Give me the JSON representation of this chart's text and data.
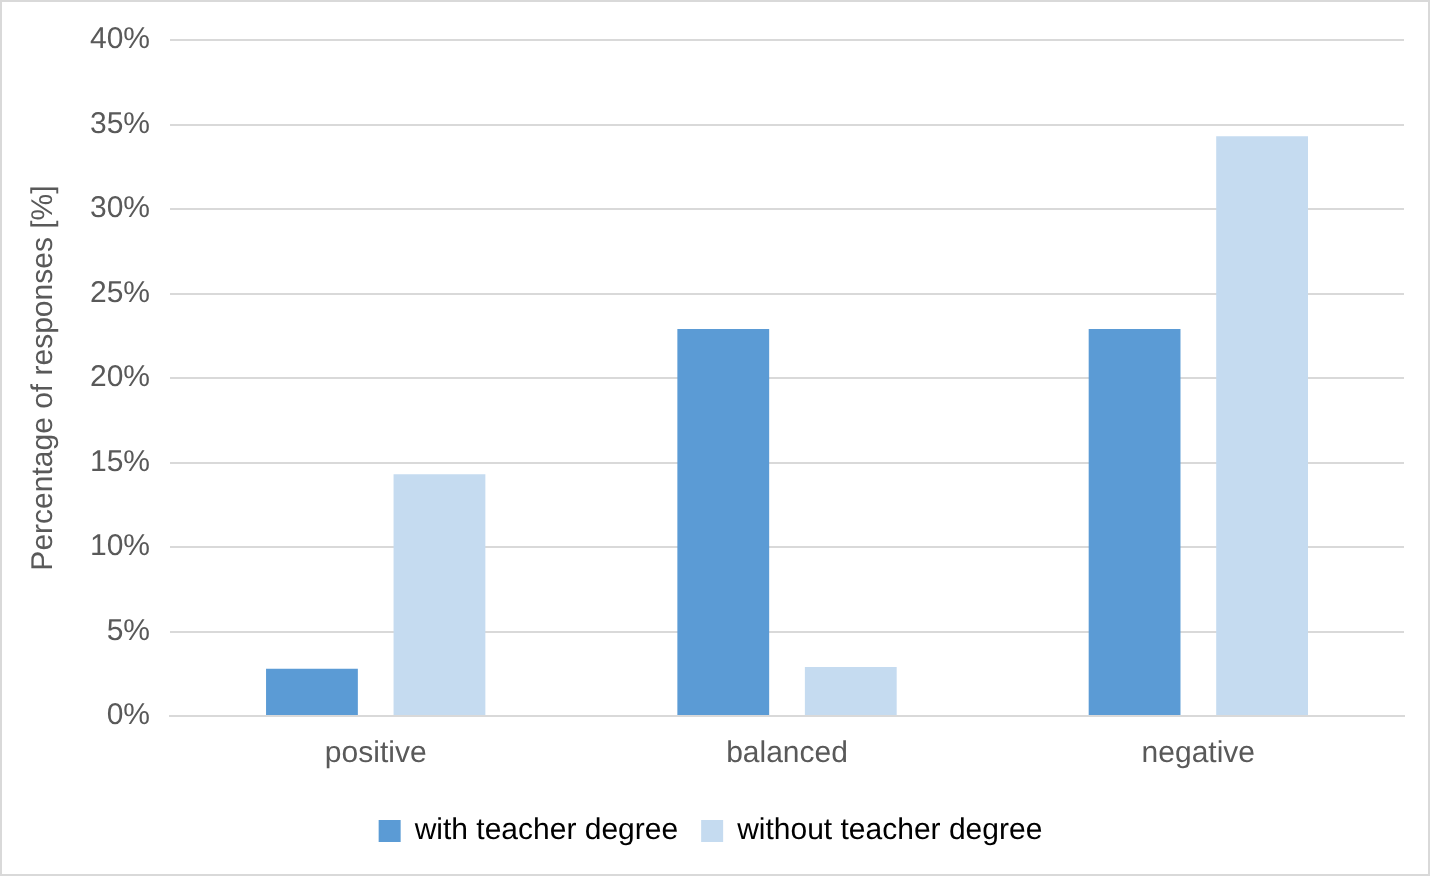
{
  "chart_data": {
    "type": "bar",
    "ylabel": "Percentage of responses [%]",
    "categories": [
      "positive",
      "balanced",
      "negative"
    ],
    "series": [
      {
        "name": "with teacher degree",
        "color": "#5b9bd5",
        "values": [
          2.8,
          22.9,
          22.9
        ]
      },
      {
        "name": "without teacher degree",
        "color": "#c5dbf0",
        "values": [
          14.3,
          2.9,
          34.3
        ]
      }
    ],
    "ylim": [
      0,
      40
    ],
    "yticks": [
      {
        "value": 0,
        "label": "0%"
      },
      {
        "value": 5,
        "label": "5%"
      },
      {
        "value": 10,
        "label": "10%"
      },
      {
        "value": 15,
        "label": "15%"
      },
      {
        "value": 20,
        "label": "20%"
      },
      {
        "value": 25,
        "label": "25%"
      },
      {
        "value": 30,
        "label": "30%"
      },
      {
        "value": 35,
        "label": "35%"
      },
      {
        "value": 40,
        "label": "40%"
      }
    ],
    "grid": "y",
    "legend": "bottom"
  }
}
